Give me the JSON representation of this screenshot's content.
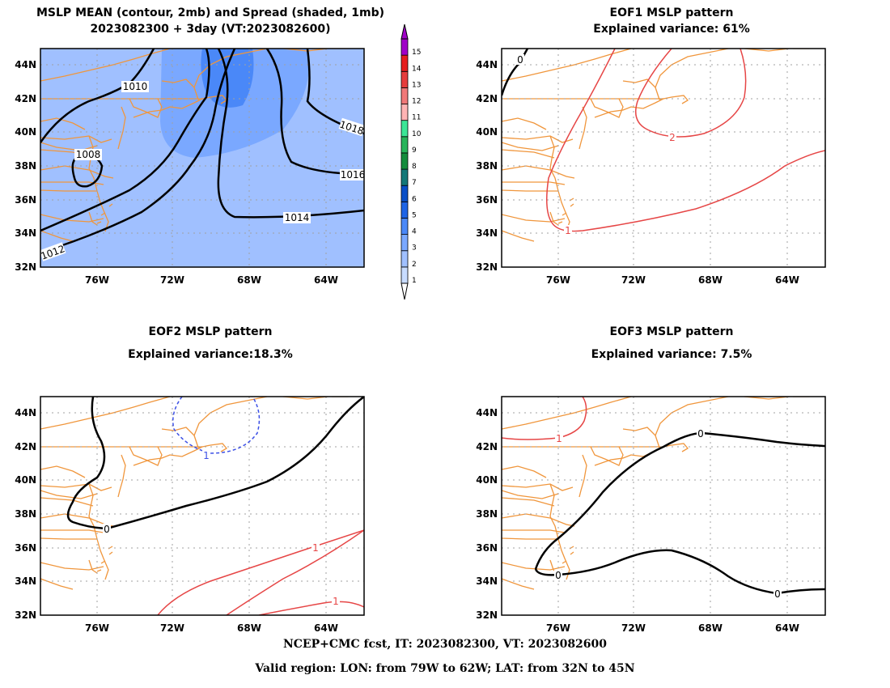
{
  "panels": [
    {
      "title1": "MSLP MEAN (contour, 2mb) and Spread (shaded, 1mb)",
      "title2": "2023082300 + 3day (VT:2023082600)"
    },
    {
      "title1": "EOF1 MSLP pattern",
      "title2": "Explained variance: 61%"
    },
    {
      "title1": "EOF2 MSLP pattern",
      "title2": "Explained variance:18.3%"
    },
    {
      "title1": "EOF3 MSLP pattern",
      "title2": "Explained variance: 7.5%"
    }
  ],
  "axes": {
    "lat_ticks": [
      "44N",
      "42N",
      "40N",
      "38N",
      "36N",
      "34N",
      "32N"
    ],
    "lon_ticks": [
      "76W",
      "72W",
      "68W",
      "64W"
    ]
  },
  "colorbar": {
    "labels": [
      "1",
      "2",
      "3",
      "4",
      "5",
      "6",
      "7",
      "8",
      "9",
      "10",
      "11",
      "12",
      "13",
      "14",
      "15"
    ],
    "colors": [
      "#c8dcff",
      "#a0c0ff",
      "#7aa8ff",
      "#4a88f8",
      "#1e64e6",
      "#0a50c8",
      "#147878",
      "#148c3c",
      "#28b45a",
      "#3ce696",
      "#ffb4b4",
      "#f07878",
      "#e63c3c",
      "#e61e1e",
      "#a000c8"
    ]
  },
  "contour_labels": {
    "mean": [
      "1010",
      "1008",
      "1018",
      "1016",
      "1014",
      "1012"
    ],
    "eof1": [
      "0",
      "2",
      "1"
    ],
    "eof2": [
      "1",
      "0",
      "1",
      "1"
    ],
    "eof3": [
      "1",
      "0",
      "0",
      "0"
    ]
  },
  "colors": {
    "coast": "#f0963c",
    "positive": "#e64646",
    "negative": "#3c50e6",
    "zero": "#000000",
    "grid": "#a0a0a0"
  },
  "footer": {
    "line1": "NCEP+CMC fcst, IT: 2023082300, VT: 2023082600",
    "line2": "Valid region: LON: from 79W to 62W; LAT: from 32N to 45N"
  }
}
